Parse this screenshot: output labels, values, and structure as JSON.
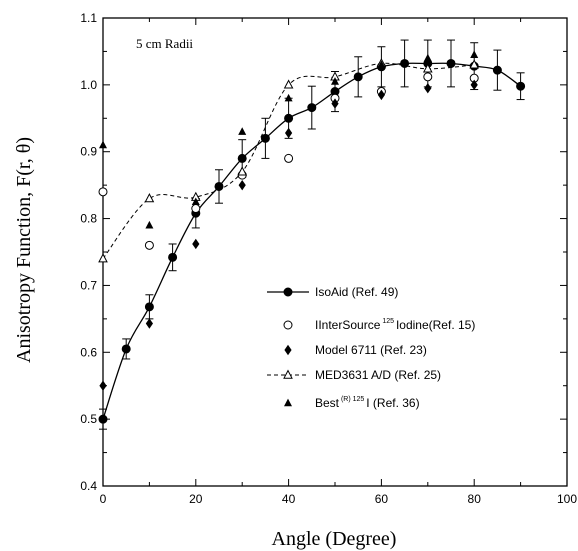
{
  "chart_data": {
    "type": "scatter",
    "title": "",
    "annotation": "5 cm Radii",
    "xlabel": "Angle (Degree)",
    "ylabel": "Anisotropy Function, F(r, θ)",
    "xlim": [
      0,
      100
    ],
    "ylim": [
      0.4,
      1.1
    ],
    "x_ticks": [
      "0",
      "20",
      "40",
      "60",
      "80",
      "100"
    ],
    "y_ticks": [
      "0.4",
      "0.5",
      "0.6",
      "0.7",
      "0.8",
      "0.9",
      "1.0",
      "1.1"
    ],
    "grid": false,
    "legend_position": "lower-center",
    "series": [
      {
        "name": "IsoAid (Ref. 49)",
        "marker": "filled-circle",
        "line": "solid",
        "x": [
          0,
          5,
          10,
          15,
          20,
          25,
          30,
          35,
          40,
          45,
          50,
          55,
          60,
          65,
          70,
          75,
          80,
          85,
          90
        ],
        "y": [
          0.5,
          0.605,
          0.668,
          0.742,
          0.808,
          0.848,
          0.89,
          0.92,
          0.95,
          0.966,
          0.99,
          1.012,
          1.027,
          1.032,
          1.032,
          1.032,
          1.028,
          1.022,
          0.998
        ],
        "err": [
          0.015,
          0.015,
          0.018,
          0.02,
          0.022,
          0.025,
          0.028,
          0.03,
          0.03,
          0.032,
          0.03,
          0.03,
          0.03,
          0.035,
          0.035,
          0.035,
          0.035,
          0.03,
          0.02
        ]
      },
      {
        "name": "IInterSource",
        "name_superscript": "125",
        "name_suffix": "Iodine(Ref. 15)",
        "marker": "open-circle",
        "line": "none",
        "x": [
          0,
          10,
          20,
          30,
          40,
          50,
          60,
          70,
          80
        ],
        "y": [
          0.84,
          0.76,
          0.815,
          0.865,
          0.89,
          0.98,
          0.99,
          1.012,
          1.01
        ]
      },
      {
        "name": "Model 6711 (Ref. 23)",
        "marker": "filled-diamond",
        "line": "none",
        "x": [
          0,
          10,
          20,
          30,
          40,
          50,
          60,
          70,
          80
        ],
        "y": [
          0.55,
          0.643,
          0.762,
          0.85,
          0.928,
          0.972,
          0.985,
          0.995,
          1.0
        ]
      },
      {
        "name": "MED3631 A/D (Ref. 25)",
        "marker": "open-triangle",
        "line": "dashed",
        "x": [
          0,
          10,
          20,
          30,
          40,
          50,
          60,
          70,
          80
        ],
        "y": [
          0.74,
          0.83,
          0.832,
          0.87,
          1.0,
          1.012,
          1.032,
          1.024,
          1.03
        ]
      },
      {
        "name": "Best",
        "name_superscript": "(R)  125",
        "name_suffix": "I (Ref. 36)",
        "marker": "filled-triangle",
        "line": "none",
        "x": [
          0,
          10,
          20,
          30,
          40,
          50,
          60,
          70,
          80
        ],
        "y": [
          0.91,
          0.79,
          0.825,
          0.93,
          0.98,
          1.005,
          1.03,
          1.04,
          1.045
        ]
      }
    ]
  }
}
